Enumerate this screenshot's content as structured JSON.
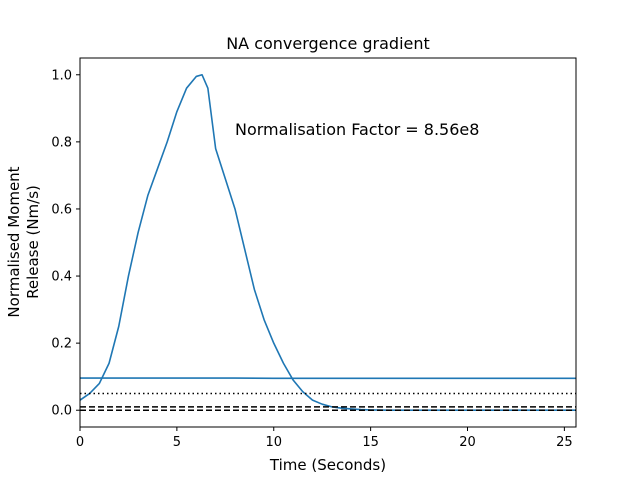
{
  "chart_data": {
    "type": "line",
    "title": "NA convergence gradient",
    "xlabel": "Time (Seconds)",
    "ylabel_lines": [
      "Normalised Moment",
      "Release (Nm/s)"
    ],
    "xlim": [
      0,
      25.6
    ],
    "ylim": [
      -0.05,
      1.05
    ],
    "xticks": [
      0,
      5,
      10,
      15,
      20,
      25
    ],
    "yticks": [
      0.0,
      0.2,
      0.4,
      0.6,
      0.8,
      1.0
    ],
    "ytick_labels": [
      "0.0",
      "0.2",
      "0.4",
      "0.6",
      "0.8",
      "1.0"
    ],
    "grid": false,
    "annotation": {
      "text": "Normalisation Factor = 8.56e8",
      "x": 8.0,
      "y": 0.82
    },
    "series": [
      {
        "color": "#1f77b4",
        "style": "solid",
        "x": [
          0,
          0.5,
          1,
          1.5,
          2,
          2.5,
          3,
          3.5,
          4,
          4.5,
          5,
          5.5,
          6,
          6.3,
          6.6,
          7,
          7.5,
          8,
          8.5,
          9,
          9.5,
          10,
          10.5,
          11,
          11.5,
          12,
          12.5,
          13,
          13.5,
          14,
          14.5,
          15,
          16,
          18,
          20,
          22,
          24,
          25.6
        ],
        "y": [
          0.03,
          0.05,
          0.08,
          0.14,
          0.25,
          0.4,
          0.53,
          0.64,
          0.72,
          0.8,
          0.89,
          0.96,
          0.995,
          1.0,
          0.96,
          0.78,
          0.69,
          0.6,
          0.48,
          0.36,
          0.27,
          0.2,
          0.14,
          0.09,
          0.055,
          0.03,
          0.018,
          0.01,
          0.006,
          0.004,
          0.002,
          0.001,
          0.0,
          0.0,
          0.0,
          0.0,
          0.0,
          0.0
        ]
      },
      {
        "color": "#1f77b4",
        "style": "solid",
        "x": [
          0,
          3,
          8,
          10,
          15,
          20,
          25.6
        ],
        "y": [
          0.096,
          0.096,
          0.096,
          0.095,
          0.095,
          0.095,
          0.095
        ]
      },
      {
        "color": "#000000",
        "style": "dotted",
        "x": [
          0,
          25.6
        ],
        "y": [
          0.05,
          0.05
        ]
      },
      {
        "color": "#000000",
        "style": "dashed",
        "x": [
          0,
          25.6
        ],
        "y": [
          0.01,
          0.01
        ]
      },
      {
        "color": "#000000",
        "style": "dashed",
        "x": [
          0,
          25.6
        ],
        "y": [
          0.0,
          0.0
        ]
      }
    ]
  }
}
